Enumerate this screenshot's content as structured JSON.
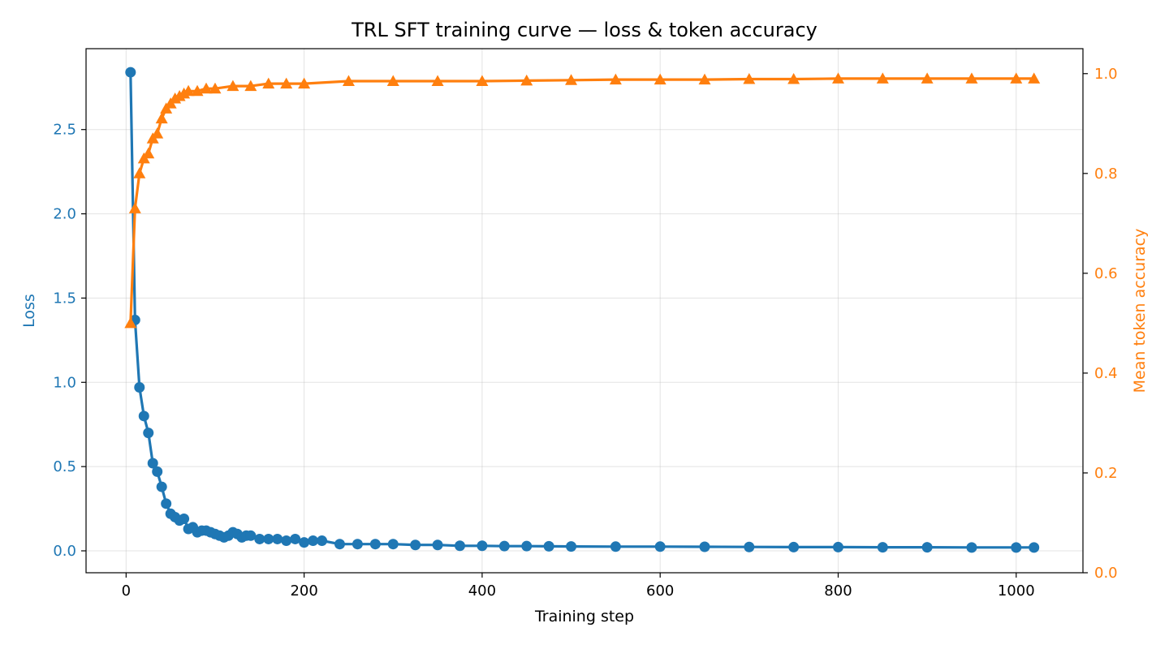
{
  "chart_data": {
    "type": "line",
    "title": "TRL SFT training curve — loss & token accuracy",
    "xlabel": "Training step",
    "ylabel": "Loss",
    "y2label": "Mean token accuracy",
    "xlim": [
      -45,
      1075
    ],
    "ylim": [
      -0.13,
      2.98
    ],
    "y2lim": [
      0.0,
      1.05
    ],
    "xticks": [
      0,
      200,
      400,
      600,
      800,
      1000
    ],
    "yticks": [
      0.0,
      0.5,
      1.0,
      1.5,
      2.0,
      2.5
    ],
    "y2ticks": [
      0.0,
      0.2,
      0.4,
      0.6,
      0.8,
      1.0
    ],
    "xtick_labels": [
      "0",
      "200",
      "400",
      "600",
      "800",
      "1000"
    ],
    "ytick_labels": [
      "0.0",
      "0.5",
      "1.0",
      "1.5",
      "2.0",
      "2.5"
    ],
    "y2tick_labels": [
      "0.0",
      "0.2",
      "0.4",
      "0.6",
      "0.8",
      "1.0"
    ],
    "grid": true,
    "series": [
      {
        "name": "Loss",
        "axis": "left",
        "color": "#1f77b4",
        "marker": "circle",
        "points": [
          [
            5,
            2.84
          ],
          [
            10,
            1.37
          ],
          [
            15,
            0.97
          ],
          [
            20,
            0.8
          ],
          [
            25,
            0.7
          ],
          [
            30,
            0.52
          ],
          [
            35,
            0.47
          ],
          [
            40,
            0.38
          ],
          [
            45,
            0.28
          ],
          [
            50,
            0.22
          ],
          [
            55,
            0.2
          ],
          [
            60,
            0.18
          ],
          [
            65,
            0.19
          ],
          [
            70,
            0.13
          ],
          [
            75,
            0.14
          ],
          [
            80,
            0.11
          ],
          [
            85,
            0.12
          ],
          [
            90,
            0.12
          ],
          [
            95,
            0.11
          ],
          [
            100,
            0.1
          ],
          [
            105,
            0.09
          ],
          [
            110,
            0.08
          ],
          [
            115,
            0.09
          ],
          [
            120,
            0.11
          ],
          [
            125,
            0.1
          ],
          [
            130,
            0.08
          ],
          [
            135,
            0.09
          ],
          [
            140,
            0.09
          ],
          [
            150,
            0.07
          ],
          [
            160,
            0.07
          ],
          [
            170,
            0.07
          ],
          [
            180,
            0.06
          ],
          [
            190,
            0.07
          ],
          [
            200,
            0.05
          ],
          [
            210,
            0.06
          ],
          [
            220,
            0.06
          ],
          [
            240,
            0.04
          ],
          [
            260,
            0.04
          ],
          [
            280,
            0.04
          ],
          [
            300,
            0.04
          ],
          [
            325,
            0.035
          ],
          [
            350,
            0.035
          ],
          [
            375,
            0.03
          ],
          [
            400,
            0.03
          ],
          [
            425,
            0.028
          ],
          [
            450,
            0.028
          ],
          [
            475,
            0.027
          ],
          [
            500,
            0.026
          ],
          [
            550,
            0.025
          ],
          [
            600,
            0.025
          ],
          [
            650,
            0.024
          ],
          [
            700,
            0.023
          ],
          [
            750,
            0.022
          ],
          [
            800,
            0.022
          ],
          [
            850,
            0.021
          ],
          [
            900,
            0.021
          ],
          [
            950,
            0.02
          ],
          [
            1000,
            0.02
          ],
          [
            1020,
            0.02
          ]
        ]
      },
      {
        "name": "Mean token accuracy",
        "axis": "right",
        "color": "#ff7f0e",
        "marker": "triangle",
        "points": [
          [
            5,
            0.5
          ],
          [
            10,
            0.73
          ],
          [
            15,
            0.8
          ],
          [
            20,
            0.83
          ],
          [
            25,
            0.84
          ],
          [
            30,
            0.87
          ],
          [
            35,
            0.88
          ],
          [
            40,
            0.91
          ],
          [
            45,
            0.93
          ],
          [
            50,
            0.94
          ],
          [
            55,
            0.95
          ],
          [
            60,
            0.955
          ],
          [
            65,
            0.96
          ],
          [
            70,
            0.965
          ],
          [
            80,
            0.965
          ],
          [
            90,
            0.97
          ],
          [
            100,
            0.97
          ],
          [
            120,
            0.975
          ],
          [
            140,
            0.975
          ],
          [
            160,
            0.98
          ],
          [
            180,
            0.98
          ],
          [
            200,
            0.98
          ],
          [
            250,
            0.985
          ],
          [
            300,
            0.985
          ],
          [
            350,
            0.985
          ],
          [
            400,
            0.985
          ],
          [
            450,
            0.986
          ],
          [
            500,
            0.987
          ],
          [
            550,
            0.988
          ],
          [
            600,
            0.988
          ],
          [
            650,
            0.988
          ],
          [
            700,
            0.989
          ],
          [
            750,
            0.989
          ],
          [
            800,
            0.99
          ],
          [
            850,
            0.99
          ],
          [
            900,
            0.99
          ],
          [
            950,
            0.99
          ],
          [
            1000,
            0.99
          ],
          [
            1020,
            0.99
          ]
        ]
      }
    ]
  }
}
